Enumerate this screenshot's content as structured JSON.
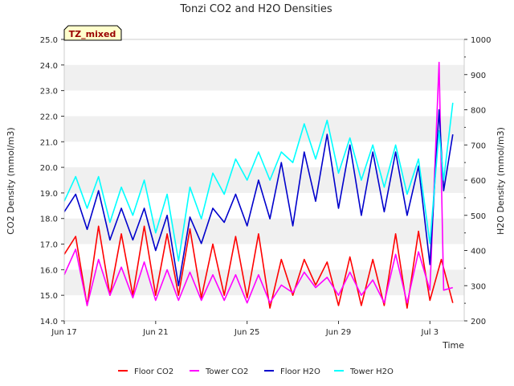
{
  "chart_data": {
    "type": "line",
    "title": "Tonzi CO2 and H2O Densities",
    "badge": "TZ_mixed",
    "xlabel": "Time",
    "ylabel_left": "CO2 Density (mmol/m3)",
    "ylabel_right": "H2O Density (mmol/m3)",
    "x_ticks": [
      "Jun 17",
      "Jun 21",
      "Jun 25",
      "Jun 29",
      "Jul 3"
    ],
    "x_tick_days": [
      0,
      4,
      8,
      12,
      16
    ],
    "xlim": [
      0,
      17.5
    ],
    "ylim_left": [
      14.0,
      25.0
    ],
    "ylim_right": [
      200,
      1000
    ],
    "y_ticks_left": [
      "14.0",
      "15.0",
      "16.0",
      "17.0",
      "18.0",
      "19.0",
      "20.0",
      "21.0",
      "22.0",
      "23.0",
      "24.0",
      "25.0"
    ],
    "y_ticks_right": [
      "200",
      "300",
      "400",
      "500",
      "600",
      "700",
      "800",
      "900",
      "1000"
    ],
    "grid": "horizontal bands",
    "legend_position": "bottom",
    "colors": {
      "floor_co2": "#ff0000",
      "tower_co2": "#ff00ff",
      "floor_h2o": "#0000cc",
      "tower_h2o": "#00ffff",
      "band": "#f0f0f0",
      "badge_bg": "#ffffcc",
      "badge_text": "#990000"
    },
    "series": [
      {
        "name": "Floor CO2",
        "axis": "left",
        "color": "#ff0000",
        "x": [
          0,
          0.5,
          1,
          1.5,
          2,
          2.5,
          3,
          3.5,
          4,
          4.5,
          5,
          5.5,
          6,
          6.5,
          7,
          7.5,
          8,
          8.5,
          9,
          9.5,
          10,
          10.5,
          11,
          11.5,
          12,
          12.5,
          13,
          13.5,
          14,
          14.5,
          15,
          15.5,
          16,
          16.5,
          17
        ],
        "y": [
          16.6,
          17.3,
          14.6,
          17.7,
          15.0,
          17.4,
          15.0,
          17.7,
          15.0,
          17.4,
          15.0,
          17.6,
          14.9,
          17.0,
          15.0,
          17.3,
          14.9,
          17.4,
          14.5,
          16.4,
          15.0,
          16.4,
          15.4,
          16.3,
          14.6,
          16.5,
          14.6,
          16.4,
          14.6,
          17.4,
          14.5,
          17.5,
          14.8,
          16.4,
          14.7
        ]
      },
      {
        "name": "Tower CO2",
        "axis": "left",
        "color": "#ff00ff",
        "x": [
          0,
          0.5,
          1,
          1.5,
          2,
          2.5,
          3,
          3.5,
          4,
          4.5,
          5,
          5.5,
          6,
          6.5,
          7,
          7.5,
          8,
          8.5,
          9,
          9.5,
          10,
          10.5,
          11,
          11.5,
          12,
          12.5,
          13,
          13.5,
          14,
          14.5,
          15,
          15.5,
          16,
          16.4,
          16.6,
          17
        ],
        "y": [
          15.8,
          16.8,
          14.6,
          16.4,
          15.0,
          16.1,
          14.9,
          16.3,
          14.8,
          16.0,
          14.8,
          15.9,
          14.8,
          15.8,
          14.8,
          15.8,
          14.7,
          15.8,
          14.7,
          15.4,
          15.1,
          15.9,
          15.3,
          15.7,
          15.0,
          15.9,
          15.0,
          15.6,
          14.7,
          16.6,
          14.7,
          16.7,
          15.2,
          24.1,
          15.2,
          15.3
        ]
      },
      {
        "name": "Floor H2O",
        "axis": "right",
        "color": "#0000cc",
        "x": [
          0,
          0.5,
          1,
          1.5,
          2,
          2.5,
          3,
          3.5,
          4,
          4.5,
          5,
          5.5,
          6,
          6.5,
          7,
          7.5,
          8,
          8.5,
          9,
          9.5,
          10,
          10.5,
          11,
          11.5,
          12,
          12.5,
          13,
          13.5,
          14,
          14.5,
          15,
          15.5,
          16,
          16.4,
          16.6,
          17
        ],
        "y": [
          510,
          560,
          460,
          570,
          430,
          520,
          430,
          520,
          400,
          500,
          300,
          495,
          420,
          520,
          480,
          560,
          470,
          600,
          490,
          650,
          470,
          680,
          540,
          730,
          520,
          700,
          500,
          680,
          510,
          680,
          500,
          640,
          360,
          800,
          570,
          730
        ]
      },
      {
        "name": "Tower H2O",
        "axis": "right",
        "color": "#00ffff",
        "x": [
          0,
          0.5,
          1,
          1.5,
          2,
          2.5,
          3,
          3.5,
          4,
          4.5,
          5,
          5.5,
          6,
          6.5,
          7,
          7.5,
          8,
          8.5,
          9,
          9.5,
          10,
          10.5,
          11,
          11.5,
          12,
          12.5,
          13,
          13.5,
          14,
          14.5,
          15,
          15.5,
          16,
          16.4,
          16.6,
          17
        ],
        "y": [
          540,
          610,
          520,
          610,
          480,
          580,
          500,
          600,
          450,
          560,
          370,
          580,
          490,
          620,
          560,
          660,
          600,
          680,
          600,
          680,
          650,
          760,
          660,
          770,
          620,
          720,
          600,
          700,
          580,
          700,
          560,
          660,
          420,
          740,
          600,
          820
        ]
      }
    ]
  }
}
